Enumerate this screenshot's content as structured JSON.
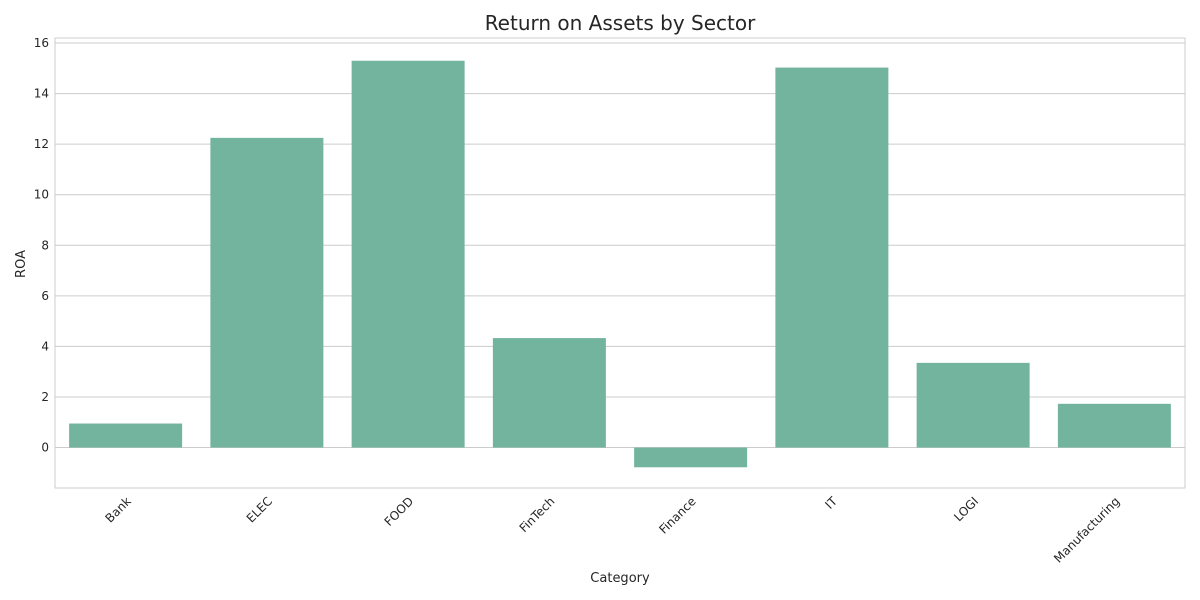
{
  "chart_data": {
    "type": "bar",
    "title": "Return on Assets by Sector",
    "xlabel": "Category",
    "ylabel": "ROA",
    "categories": [
      "Bank",
      "ELEC",
      "FOOD",
      "FinTech",
      "Finance",
      "IT",
      "LOGI",
      "Manufacturing"
    ],
    "values": [
      0.95,
      12.25,
      15.3,
      4.33,
      -0.78,
      15.03,
      3.35,
      1.73
    ],
    "ylim": [
      -1.6,
      16.2
    ],
    "yticks": [
      0,
      2,
      4,
      6,
      8,
      10,
      12,
      14,
      16
    ],
    "grid": true,
    "bar_color": "#73b49f",
    "grid_color": "#cccccc"
  }
}
